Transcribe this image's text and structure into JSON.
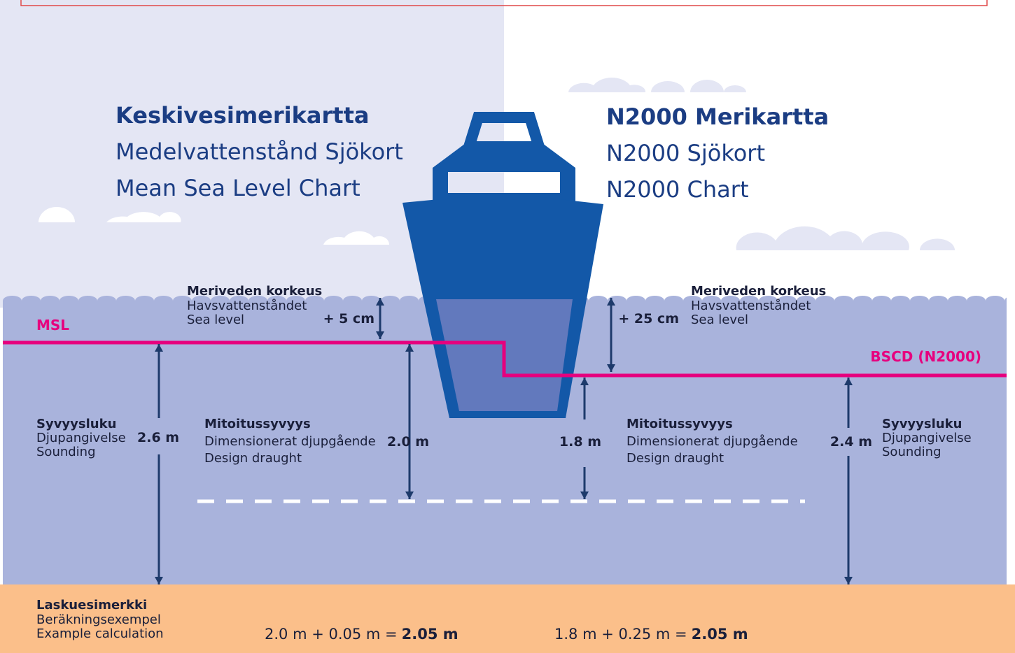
{
  "left_header": [
    "Keskivesimerikartta",
    "Medelvattenstånd Sjökort",
    "Mean Sea Level Chart"
  ],
  "right_header": [
    "N2000 Merikartta",
    "N2000 Sjökort",
    "N2000 Chart"
  ],
  "datum_labels": {
    "msl": "MSL",
    "bscd": "BSCD (N2000)"
  },
  "left": {
    "sea_level": {
      "label": [
        "Meriveden korkeus",
        "Havsvattenståndet",
        "Sea level"
      ],
      "value": "+ 5 cm"
    },
    "sounding": {
      "label": [
        "Syvyysluku",
        "Djupangivelse",
        "Sounding"
      ],
      "value": "2.6 m"
    },
    "draught": {
      "label": [
        "Mitoitussyvyys",
        "Dimensionerat djupgående",
        "Design draught"
      ],
      "value": "2.0 m"
    }
  },
  "right": {
    "sea_level": {
      "label": [
        "Meriveden korkeus",
        "Havsvattenståndet",
        "Sea level"
      ],
      "value": "+ 25 cm"
    },
    "sounding": {
      "label": [
        "Syvyysluku",
        "Djupangivelse",
        "Sounding"
      ],
      "value": "2.4 m"
    },
    "draught": {
      "label": [
        "Mitoitussyvyys",
        "Dimensionerat djupgående",
        "Design draught"
      ],
      "value": "1.8 m"
    }
  },
  "calculation": {
    "label": [
      "Laskuesimerkki",
      "Beräkningsexempel",
      "Example calculation"
    ],
    "left": {
      "expression": "2.0 m + 0.05 m =",
      "result": "2.05 m"
    },
    "right": {
      "expression": "1.8 m + 0.25 m =",
      "result": "2.05 m"
    }
  }
}
